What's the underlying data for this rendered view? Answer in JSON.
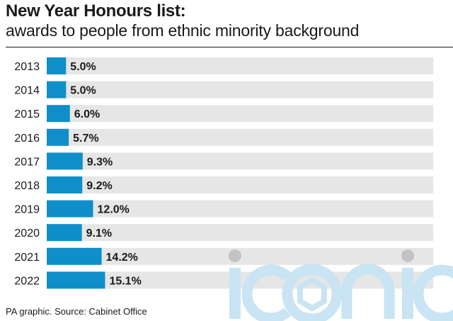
{
  "header": {
    "title": "New Year Honours list:",
    "subtitle": "awards to people from ethnic minority background"
  },
  "footer": {
    "source": "PA graphic. Source: Cabinet Office"
  },
  "watermark": {
    "text": "iconic"
  },
  "colors": {
    "bar": "#0f8fc9",
    "track": "#e6e6e6",
    "watermark": "#c9e4f3"
  },
  "chart_data": {
    "type": "bar",
    "orientation": "horizontal",
    "title": "New Year Honours list:",
    "subtitle": "awards to people from ethnic minority background",
    "xlabel": "",
    "ylabel": "",
    "categories": [
      "2013",
      "2014",
      "2015",
      "2016",
      "2017",
      "2018",
      "2019",
      "2020",
      "2021",
      "2022"
    ],
    "values": [
      5.0,
      5.0,
      6.0,
      5.7,
      9.3,
      9.2,
      12.0,
      9.1,
      14.2,
      15.1
    ],
    "value_labels": [
      "5.0%",
      "5.0%",
      "6.0%",
      "5.7%",
      "9.3%",
      "9.2%",
      "12.0%",
      "9.1%",
      "14.2%",
      "15.1%"
    ],
    "xlim": [
      0,
      100
    ],
    "grid": false,
    "legend": "none"
  }
}
